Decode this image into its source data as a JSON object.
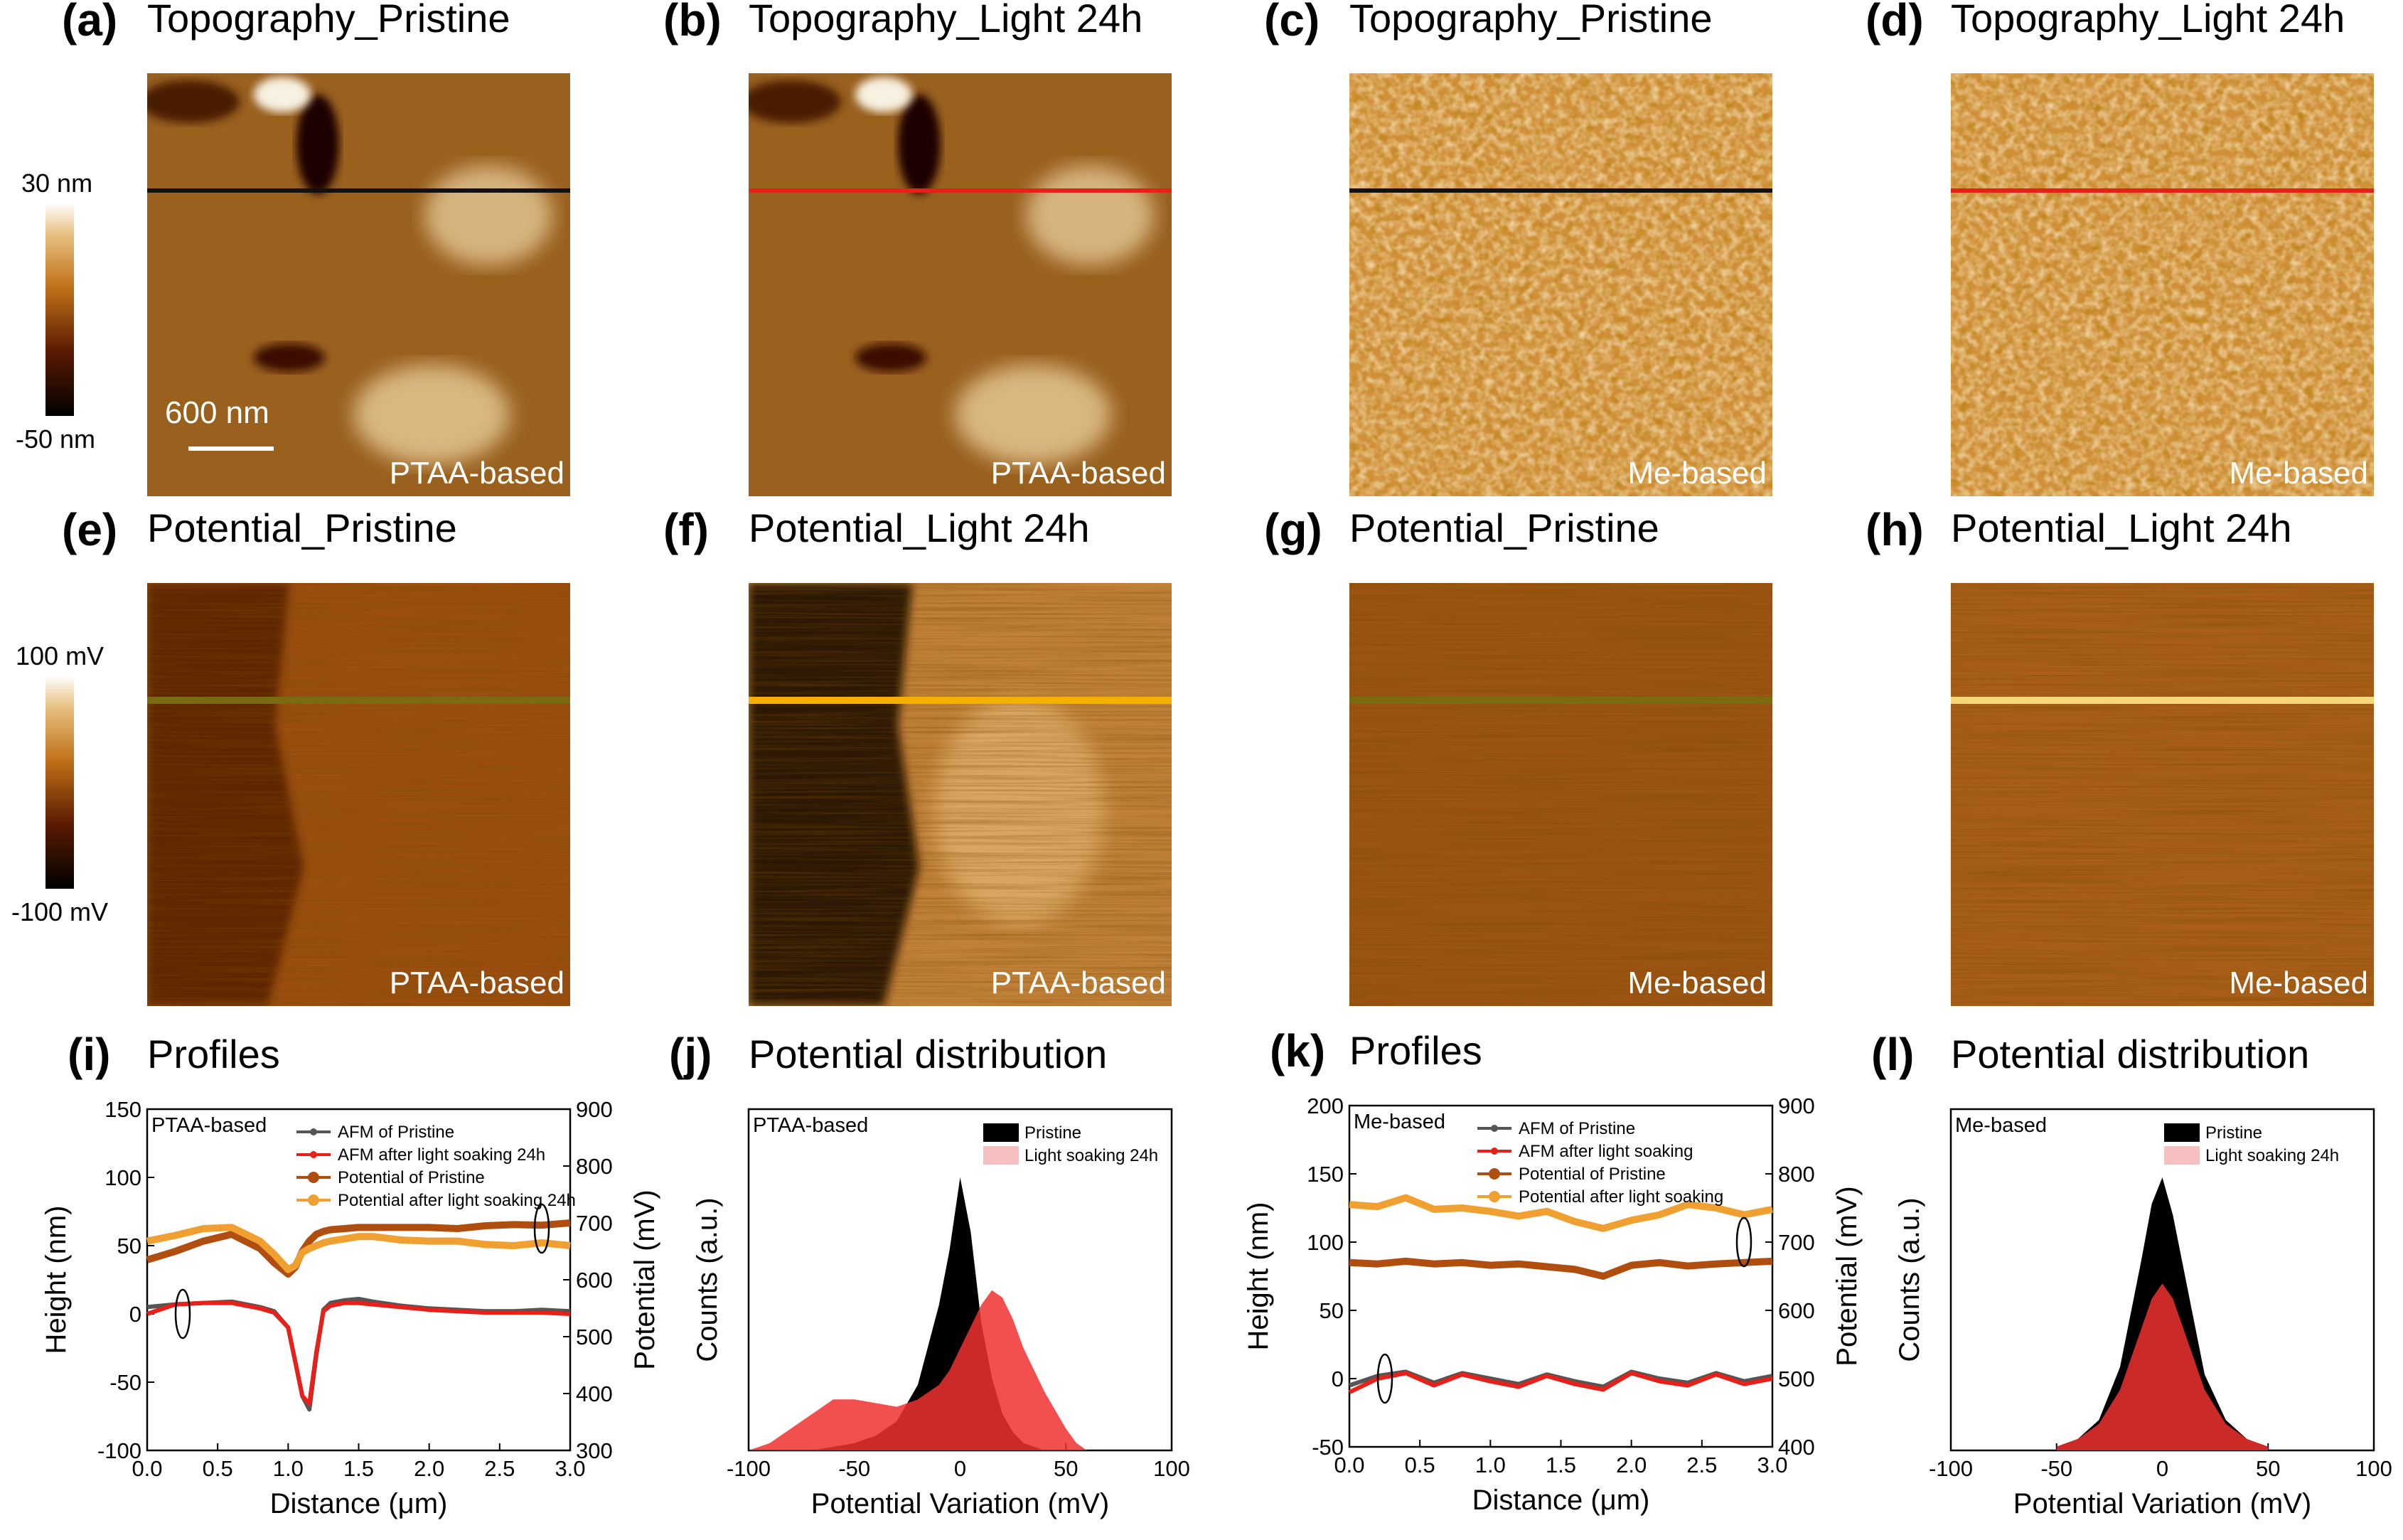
{
  "colorbars": {
    "topography": {
      "max": "30 nm",
      "min": "-50 nm"
    },
    "potential": {
      "max": "100 mV",
      "min": "-100 mV"
    }
  },
  "scalebar_label": "600 nm",
  "panels": [
    {
      "label": "(a)",
      "title": "Topography_Pristine",
      "corner": "PTAA-based",
      "kind": "topo",
      "line_color": "#111111"
    },
    {
      "label": "(b)",
      "title": "Topography_Light 24h",
      "corner": "PTAA-based",
      "kind": "topo",
      "line_color": "#e8201a"
    },
    {
      "label": "(c)",
      "title": "Topography_Pristine",
      "corner": "Me-based",
      "kind": "topo",
      "line_color": "#111111"
    },
    {
      "label": "(d)",
      "title": "Topography_Light 24h",
      "corner": "Me-based",
      "kind": "topo",
      "line_color": "#e8201a"
    },
    {
      "label": "(e)",
      "title": "Potential_Pristine",
      "corner": "PTAA-based",
      "kind": "pot",
      "line_color": "#7a6a10"
    },
    {
      "label": "(f)",
      "title": "Potential_Light 24h",
      "corner": "PTAA-based",
      "kind": "pot",
      "line_color": "#f5b000"
    },
    {
      "label": "(g)",
      "title": "Potential_Pristine",
      "corner": "Me-based",
      "kind": "pot",
      "line_color": "#7a6a10"
    },
    {
      "label": "(h)",
      "title": "Potential_Light 24h",
      "corner": "Me-based",
      "kind": "pot",
      "line_color": "#f6d878"
    }
  ],
  "chart_data": [
    {
      "id": "i",
      "type": "line",
      "label": "(i)",
      "title": "Profiles",
      "annotation": "PTAA-based",
      "xlabel": "Distance (μm)",
      "ylabel": "Height (nm)",
      "y2label": "Potential (mV)",
      "xlim": [
        0,
        3.0
      ],
      "ylim": [
        -100,
        150
      ],
      "y2lim": [
        300,
        900
      ],
      "xticks": [
        "0.0",
        "0.5",
        "1.0",
        "1.5",
        "2.0",
        "2.5",
        "3.0"
      ],
      "yticks": [
        "-100",
        "-50",
        "0",
        "50",
        "100",
        "150"
      ],
      "y2ticks": [
        "300",
        "400",
        "500",
        "600",
        "700",
        "800",
        "900"
      ],
      "x": [
        0.0,
        0.2,
        0.4,
        0.6,
        0.8,
        0.9,
        1.0,
        1.05,
        1.1,
        1.15,
        1.2,
        1.25,
        1.3,
        1.4,
        1.5,
        1.6,
        1.8,
        2.0,
        2.2,
        2.4,
        2.6,
        2.8,
        3.0
      ],
      "series": [
        {
          "name": "AFM of Pristine",
          "axis": "left",
          "color": "#555555",
          "values": [
            5,
            7,
            8,
            9,
            5,
            2,
            -10,
            -35,
            -60,
            -70,
            -30,
            3,
            8,
            10,
            11,
            9,
            6,
            4,
            3,
            2,
            2,
            3,
            2
          ]
        },
        {
          "name": "AFM after light soaking 24h",
          "axis": "left",
          "color": "#e8201a",
          "values": [
            0,
            7,
            8,
            8,
            4,
            1,
            -10,
            -35,
            -60,
            -66,
            -28,
            2,
            6,
            8,
            8,
            7,
            5,
            3,
            2,
            1,
            1,
            1,
            0
          ]
        },
        {
          "name": "Potential of Pristine",
          "axis": "right",
          "color": "#b04e10",
          "values": [
            635,
            650,
            668,
            680,
            655,
            630,
            610,
            622,
            650,
            668,
            680,
            685,
            688,
            690,
            692,
            692,
            692,
            692,
            690,
            695,
            697,
            696,
            700
          ]
        },
        {
          "name": "Potential after light soaking 24h",
          "axis": "right",
          "color": "#f0a030",
          "values": [
            668,
            678,
            690,
            692,
            668,
            645,
            618,
            625,
            648,
            655,
            660,
            665,
            668,
            672,
            676,
            676,
            670,
            668,
            668,
            662,
            660,
            665,
            660
          ]
        }
      ]
    },
    {
      "id": "j",
      "type": "histogram",
      "label": "(j)",
      "title": "Potential distribution",
      "annotation": "PTAA-based",
      "xlabel": "Potential Variation (mV)",
      "ylabel": "Counts (a.u.)",
      "xlim": [
        -100,
        100
      ],
      "xticks": [
        "-100",
        "-50",
        "0",
        "50",
        "100"
      ],
      "x": [
        -100,
        -90,
        -80,
        -70,
        -60,
        -50,
        -40,
        -30,
        -20,
        -10,
        -5,
        0,
        5,
        10,
        15,
        20,
        25,
        30,
        40,
        50,
        55,
        60,
        70
      ],
      "series": [
        {
          "name": "Pristine",
          "color": "#000000",
          "values": [
            0,
            0,
            0,
            0,
            1,
            2,
            4,
            8,
            18,
            40,
            55,
            75,
            60,
            35,
            20,
            10,
            5,
            2,
            0,
            0,
            0,
            0,
            0
          ]
        },
        {
          "name": "Light soaking 24h",
          "color": "#f06060",
          "values": [
            0,
            2,
            6,
            10,
            14,
            14,
            13,
            12,
            14,
            18,
            22,
            28,
            34,
            40,
            44,
            42,
            36,
            28,
            16,
            6,
            2,
            0,
            0
          ]
        }
      ]
    },
    {
      "id": "k",
      "type": "line",
      "label": "(k)",
      "title": "Profiles",
      "annotation": "Me-based",
      "xlabel": "Distance (μm)",
      "ylabel": "Height (nm)",
      "y2label": "Potential (mV)",
      "xlim": [
        0,
        3.0
      ],
      "ylim": [
        -50,
        200
      ],
      "y2lim": [
        400,
        900
      ],
      "xticks": [
        "0.0",
        "0.5",
        "1.0",
        "1.5",
        "2.0",
        "2.5",
        "3.0"
      ],
      "yticks": [
        "-50",
        "0",
        "50",
        "100",
        "150",
        "200"
      ],
      "y2ticks": [
        "400",
        "500",
        "600",
        "700",
        "800",
        "900"
      ],
      "x": [
        0.0,
        0.2,
        0.4,
        0.6,
        0.8,
        1.0,
        1.2,
        1.4,
        1.6,
        1.8,
        2.0,
        2.2,
        2.4,
        2.6,
        2.8,
        3.0
      ],
      "series": [
        {
          "name": "AFM of Pristine",
          "axis": "left",
          "color": "#555555",
          "values": [
            -5,
            2,
            5,
            -3,
            4,
            0,
            -4,
            3,
            -2,
            -6,
            5,
            0,
            -3,
            4,
            -2,
            2
          ]
        },
        {
          "name": "AFM after light soaking",
          "axis": "left",
          "color": "#e8201a",
          "values": [
            -10,
            0,
            4,
            -5,
            3,
            -2,
            -6,
            2,
            -4,
            -8,
            4,
            -2,
            -5,
            3,
            -4,
            0
          ]
        },
        {
          "name": "Potential of Pristine",
          "axis": "right",
          "color": "#b04e10",
          "values": [
            670,
            668,
            672,
            668,
            670,
            666,
            668,
            664,
            660,
            650,
            666,
            670,
            665,
            668,
            670,
            672
          ]
        },
        {
          "name": "Potential after light soaking",
          "axis": "right",
          "color": "#f0a030",
          "values": [
            755,
            752,
            765,
            748,
            750,
            745,
            738,
            745,
            730,
            720,
            732,
            740,
            755,
            750,
            740,
            748
          ]
        }
      ]
    },
    {
      "id": "l",
      "type": "histogram",
      "label": "(l)",
      "title": "Potential distribution",
      "annotation": "Me-based",
      "xlabel": "Potential Variation (mV)",
      "ylabel": "Counts (a.u.)",
      "xlim": [
        -100,
        100
      ],
      "xticks": [
        "-100",
        "-50",
        "0",
        "50",
        "100"
      ],
      "x": [
        -50,
        -40,
        -30,
        -20,
        -10,
        -5,
        0,
        5,
        10,
        20,
        30,
        40,
        50
      ],
      "series": [
        {
          "name": "Pristine",
          "color": "#000000",
          "values": [
            1,
            3,
            8,
            22,
            50,
            65,
            72,
            62,
            48,
            20,
            8,
            3,
            1
          ]
        },
        {
          "name": "Light soaking 24h",
          "color": "#f06060",
          "values": [
            1,
            3,
            7,
            16,
            32,
            40,
            44,
            40,
            32,
            16,
            7,
            3,
            1
          ]
        }
      ]
    }
  ]
}
